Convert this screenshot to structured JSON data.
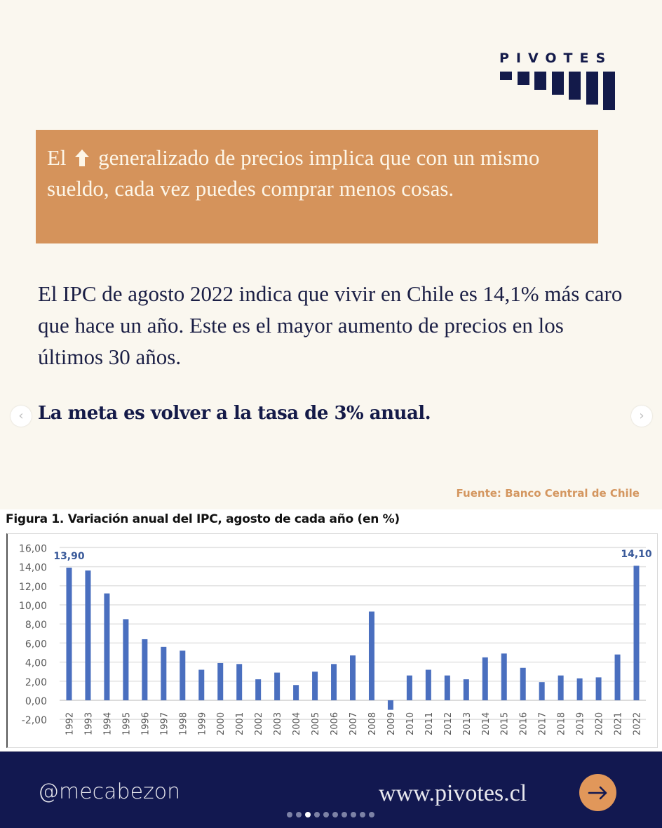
{
  "brand": {
    "name": "PIVOTES",
    "color": "#131a4a"
  },
  "callout": {
    "before_icon": "El",
    "icon": "up-arrow-icon",
    "after_icon": "generalizado de precios implica que con un mismo sueldo, cada vez puedes comprar menos cosas.",
    "bg_color": "#d5935b"
  },
  "body_text": "El IPC de agosto 2022 indica que vivir en Chile es 14,1% más caro que hace un año. Este es el mayor aumento de precios en los últimos 30 años.",
  "goal_text": "La meta es volver a la tasa de 3% anual.",
  "nav": {
    "prev": "‹",
    "next": "›"
  },
  "source": "Fuente: Banco Central de Chile",
  "chart_data": {
    "type": "bar",
    "title": "Figura 1. Variación anual del IPC, agosto de cada año (en %)",
    "xlabel": "",
    "ylabel": "",
    "ylim": [
      -2,
      16
    ],
    "yticks": [
      "16,00",
      "14,00",
      "12,00",
      "10,00",
      "8,00",
      "6,00",
      "4,00",
      "2,00",
      "0,00",
      "-2,00"
    ],
    "ytick_values": [
      16,
      14,
      12,
      10,
      8,
      6,
      4,
      2,
      0,
      -2
    ],
    "grid": true,
    "bar_color": "#4a6fbf",
    "categories": [
      "1992",
      "1993",
      "1994",
      "1995",
      "1996",
      "1997",
      "1998",
      "1999",
      "2000",
      "2001",
      "2002",
      "2003",
      "2004",
      "2005",
      "2006",
      "2007",
      "2008",
      "2009",
      "2010",
      "2011",
      "2012",
      "2013",
      "2014",
      "2015",
      "2016",
      "2017",
      "2018",
      "2019",
      "2020",
      "2021",
      "2022"
    ],
    "values": [
      13.9,
      13.6,
      11.2,
      8.5,
      6.4,
      5.6,
      5.2,
      3.2,
      3.9,
      3.8,
      2.2,
      2.9,
      1.6,
      3.0,
      3.8,
      4.7,
      9.3,
      -1.0,
      2.6,
      3.2,
      2.6,
      2.2,
      4.5,
      4.9,
      3.4,
      1.9,
      2.6,
      2.3,
      2.4,
      4.8,
      14.1
    ],
    "data_labels": [
      {
        "category": "1992",
        "text": "13,90"
      },
      {
        "category": "2022",
        "text": "14,10"
      }
    ],
    "label_color": "#3a5a9a"
  },
  "footer": {
    "handle": "@mecabezon",
    "website": "www.pivotes.cl",
    "next_icon": "arrow-right-icon",
    "page_dots": 10,
    "active_dot": 3,
    "bg_color": "#121850"
  }
}
